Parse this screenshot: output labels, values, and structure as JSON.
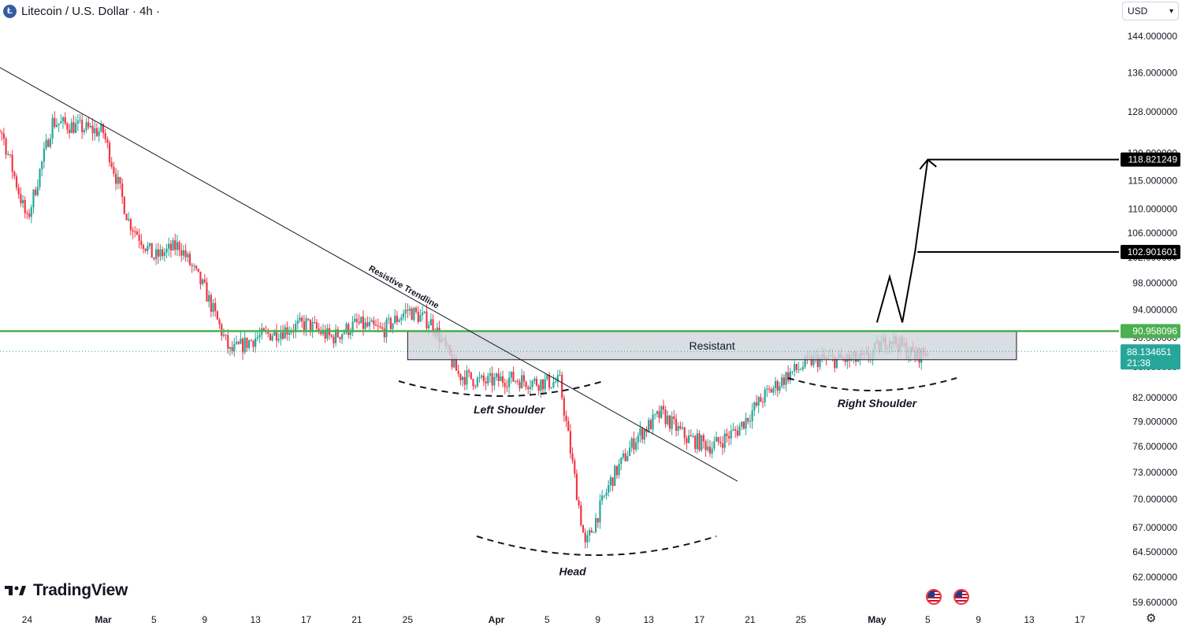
{
  "header": {
    "coin_letter": "Ł",
    "title": "Litecoin / U.S. Dollar · 4h ·"
  },
  "currency_selector": {
    "value": "USD"
  },
  "branding": {
    "logo_text": "TradingView"
  },
  "colors": {
    "up": "#26a69a",
    "down": "#f23645",
    "resistance_line": "#4caf50",
    "zone_fill": "#d1d4dc",
    "label_dark": "#000000",
    "price_label": "#26a69a"
  },
  "icons": [
    "litecoin-icon",
    "chevron-down-icon",
    "tradingview-logo-icon",
    "us-flag-icon",
    "gear-icon"
  ],
  "chart_data": {
    "type": "candlestick",
    "title": "Litecoin / U.S. Dollar · 4h",
    "ylim": [
      59.6,
      146.0
    ],
    "y_scale": "log",
    "y_ticks": [
      "144.000000",
      "136.000000",
      "128.000000",
      "120.000000",
      "115.000000",
      "110.000000",
      "106.000000",
      "102.000000",
      "98.000000",
      "94.000000",
      "90.000000",
      "86.000000",
      "82.000000",
      "79.000000",
      "76.000000",
      "73.000000",
      "70.000000",
      "67.000000",
      "64.500000",
      "62.000000",
      "59.600000"
    ],
    "x_ticks": [
      "24",
      "Mar",
      "5",
      "9",
      "13",
      "17",
      "21",
      "25",
      "Apr",
      "5",
      "9",
      "13",
      "17",
      "21",
      "25",
      "May",
      "5",
      "9",
      "13",
      "17"
    ],
    "x_tick_dates": [
      "2024-02-24",
      "2024-03-01",
      "2024-03-05",
      "2024-03-09",
      "2024-03-13",
      "2024-03-17",
      "2024-03-21",
      "2024-03-25",
      "2024-04-01",
      "2024-04-05",
      "2024-04-09",
      "2024-04-13",
      "2024-04-17",
      "2024-04-21",
      "2024-04-25",
      "2024-05-01",
      "2024-05-05",
      "2024-05-09",
      "2024-05-13",
      "2024-05-17"
    ],
    "price_series": {
      "dates": [
        "2024-02-20",
        "2024-02-22",
        "2024-02-24",
        "2024-02-26",
        "2024-02-28",
        "2024-03-01",
        "2024-03-03",
        "2024-03-05",
        "2024-03-07",
        "2024-03-09",
        "2024-03-11",
        "2024-03-13",
        "2024-03-15",
        "2024-03-17",
        "2024-03-19",
        "2024-03-21",
        "2024-03-23",
        "2024-03-25",
        "2024-03-27",
        "2024-03-29",
        "2024-03-31",
        "2024-04-02",
        "2024-04-04",
        "2024-04-06",
        "2024-04-08",
        "2024-04-10",
        "2024-04-12",
        "2024-04-14",
        "2024-04-16",
        "2024-04-18",
        "2024-04-20",
        "2024-04-22",
        "2024-04-24",
        "2024-04-26",
        "2024-04-28",
        "2024-04-30",
        "2024-05-02",
        "2024-05-04",
        "2024-05-05"
      ],
      "values": [
        130,
        124,
        108,
        126,
        125,
        124,
        108,
        102,
        104,
        97,
        88,
        90,
        91,
        92,
        90,
        92,
        91,
        94,
        92,
        85,
        84,
        84.5,
        84,
        84,
        65,
        72,
        77,
        80,
        77,
        76,
        78,
        82,
        85,
        87,
        87,
        87,
        90,
        87.5,
        88.13
      ]
    },
    "levels": [
      {
        "label": "118.821249",
        "value": 118.821249
      },
      {
        "label": "102.901601",
        "value": 102.901601
      },
      {
        "label": "90.958096",
        "value": 90.958096
      }
    ],
    "current_price": {
      "label": "88.134651",
      "value": 88.134651,
      "countdown": "21:38"
    },
    "resistance_zone": {
      "label": "Resistant",
      "from": 87.0,
      "to": 90.9,
      "start": "2024-03-25",
      "end": "2024-05-12"
    },
    "trendline": {
      "label": "Resistive Trendline",
      "start_date": "2024-02-20",
      "start_value": 140,
      "end_date": "2024-04-20",
      "end_value": 72
    },
    "annotations": [
      {
        "label": "Left Shoulder",
        "date": "2024-04-02",
        "value": 80.0
      },
      {
        "label": "Head",
        "date": "2024-04-07",
        "value": 62.2
      },
      {
        "label": "Right Shoulder",
        "date": "2024-05-01",
        "value": 80.8
      }
    ],
    "projection": {
      "points": [
        {
          "date": "2024-05-01",
          "value": 92.2
        },
        {
          "date": "2024-05-02",
          "value": 99.0
        },
        {
          "date": "2024-05-03",
          "value": 92.2
        },
        {
          "date": "2024-05-04",
          "value": 102.9
        },
        {
          "date": "2024-05-05",
          "value": 118.8
        }
      ]
    }
  }
}
